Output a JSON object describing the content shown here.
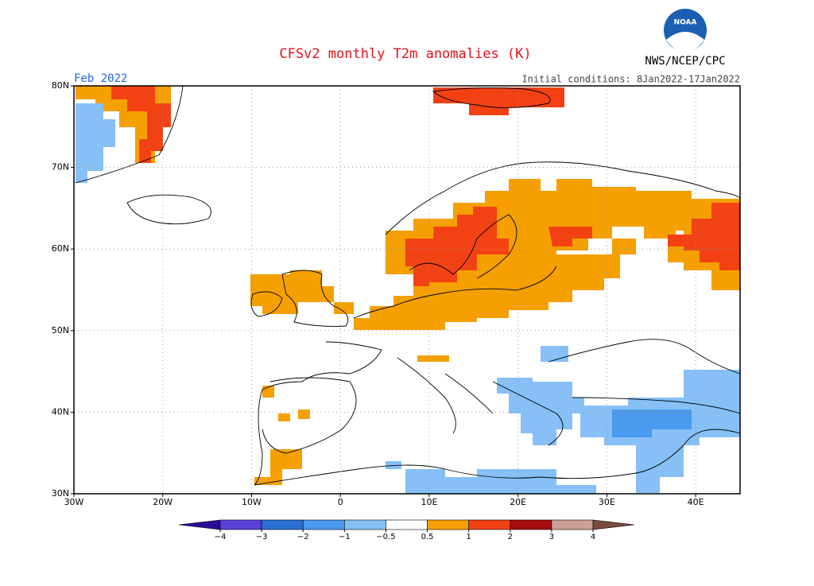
{
  "map_data": {
    "title": "CFSv2 monthly T2m anomalies (K)",
    "agency": "NWS/NCEP/CPC",
    "logo": "NOAA",
    "period": "Feb 2022",
    "initial_conditions": "Initial conditions: 8Jan2022-17Jan2022",
    "lonlim": [
      -30,
      45
    ],
    "latlim": [
      30,
      80
    ],
    "lonticks": [
      {
        "value": -30,
        "label": "30W"
      },
      {
        "value": -20,
        "label": "20W"
      },
      {
        "value": -10,
        "label": "10W"
      },
      0,
      {
        "value": 10,
        "label": "10E"
      },
      {
        "value": 20,
        "label": "20E"
      },
      {
        "value": 30,
        "label": "30E"
      },
      {
        "value": 40,
        "label": "40E"
      }
    ],
    "latticks": [
      {
        "value": 30,
        "label": "30N"
      },
      {
        "value": 40,
        "label": "40N"
      },
      {
        "value": 50,
        "label": "50N"
      },
      {
        "value": 60,
        "label": "60N"
      },
      {
        "value": 70,
        "label": "70N"
      },
      {
        "value": 80,
        "label": "80N"
      }
    ],
    "colorbar": {
      "bounds": [
        {
          "value": -4,
          "label": "−4"
        },
        {
          "value": -3,
          "label": "−3"
        },
        {
          "value": -2,
          "label": "−2"
        },
        {
          "value": -1,
          "label": "−1"
        },
        {
          "value": -0.5,
          "label": "−0.5"
        },
        0.5,
        1,
        2,
        3,
        4
      ],
      "colors": [
        "#2a0c9c",
        "#5a40d6",
        "#2a6fd4",
        "#4a9af0",
        "#86c0f6",
        "#ffffff",
        "#f5a000",
        "#f24214",
        "#a50d0d",
        "#caa194",
        "#7a4a3a"
      ]
    }
  }
}
